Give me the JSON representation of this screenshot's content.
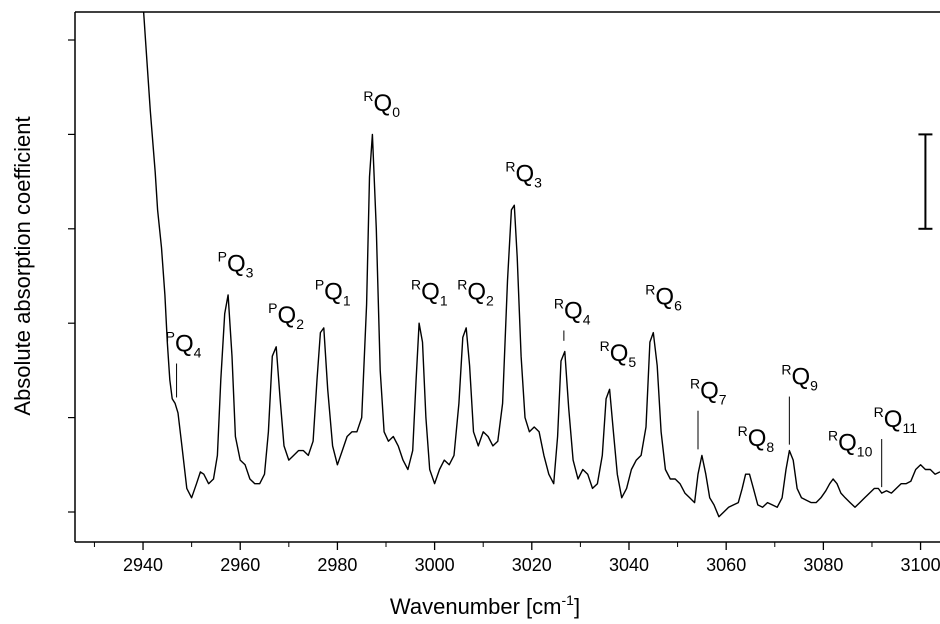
{
  "chart_data": {
    "type": "line",
    "xlabel": "Wavenumber [cm",
    "xlabel_sup": "-1",
    "xlabel_end": "]",
    "ylabel": "Absolute absorption coefficient",
    "xlim": [
      2926,
      3104
    ],
    "ylim": [
      0,
      1
    ],
    "x_ticks": [
      2940,
      2960,
      2980,
      3000,
      3020,
      3040,
      3060,
      3080,
      3100
    ],
    "x_tick_labels": [
      "2940",
      "2960",
      "2980",
      "3000",
      "3020",
      "3040",
      "3060",
      "3080",
      "3100"
    ],
    "y_ticks": [
      0.0,
      0.2,
      0.4,
      0.6,
      0.8,
      1.0
    ],
    "grid": false,
    "scale_bar": {
      "x": 3101,
      "y_low": 0.6,
      "y_high": 0.8
    },
    "series": [
      {
        "x": [
          2940.5,
          2941.5,
          2942.5,
          2943.0,
          2943.8,
          2944.5,
          2945.0,
          2945.5,
          2946.0,
          2946.6,
          2947.2,
          2948.0,
          2949.0,
          2950.0,
          2951.0,
          2951.8,
          2952.5,
          2953.5,
          2954.5,
          2955.3,
          2956.0,
          2956.8,
          2957.5,
          2958.3,
          2959.0,
          2960.0,
          2961.0,
          2962.0,
          2963.0,
          2964.0,
          2965.0,
          2965.8,
          2966.6,
          2967.4,
          2968.2,
          2969.0,
          2970.0,
          2971.0,
          2972.0,
          2973.0,
          2974.0,
          2975.0,
          2975.8,
          2976.5,
          2977.2,
          2978.0,
          2979.0,
          2980.0,
          2981.0,
          2982.0,
          2983.0,
          2984.0,
          2985.0,
          2986.0,
          2986.6,
          2987.2,
          2988.0,
          2988.8,
          2989.6,
          2990.5,
          2991.5,
          2992.5,
          2993.5,
          2994.5,
          2995.5,
          2996.2,
          2996.8,
          2997.5,
          2998.2,
          2999.0,
          3000.0,
          3001.0,
          3002.0,
          3003.0,
          3004.0,
          3005.0,
          3005.8,
          3006.5,
          3007.2,
          3008.0,
          3009.0,
          3010.0,
          3011.0,
          3012.0,
          3013.0,
          3014.0,
          3015.0,
          3015.8,
          3016.4,
          3017.0,
          3017.8,
          3018.6,
          3019.5,
          3020.5,
          3021.5,
          3022.5,
          3023.5,
          3024.5,
          3025.3,
          3026.0,
          3026.8,
          3027.6,
          3028.5,
          3029.5,
          3030.5,
          3031.5,
          3032.5,
          3033.5,
          3034.5,
          3035.3,
          3036.0,
          3036.8,
          3037.6,
          3038.5,
          3039.5,
          3040.5,
          3041.5,
          3042.5,
          3043.5,
          3044.3,
          3045.0,
          3045.8,
          3046.6,
          3047.5,
          3048.5,
          3049.5,
          3050.5,
          3051.5,
          3052.5,
          3053.5,
          3054.2,
          3055.0,
          3055.8,
          3056.6,
          3057.5,
          3058.5,
          3059.5,
          3060.5,
          3061.5,
          3062.5,
          3063.3,
          3064.0,
          3064.8,
          3065.6,
          3066.5,
          3067.5,
          3068.5,
          3069.5,
          3070.5,
          3071.5,
          3072.3,
          3073.0,
          3073.8,
          3074.6,
          3075.5,
          3076.5,
          3077.5,
          3078.5,
          3079.5,
          3080.5,
          3081.3,
          3082.0,
          3082.8,
          3083.6,
          3084.5,
          3085.5,
          3086.5,
          3087.5,
          3088.5,
          3089.5,
          3090.5,
          3091.3,
          3092.0,
          3093.0,
          3094.0,
          3095.0,
          3096.0,
          3097.0,
          3098.0,
          3099.0,
          3100.0,
          3101.0,
          3102.0,
          3103.0,
          3104.0
        ],
        "y": [
          1.0,
          0.85,
          0.72,
          0.64,
          0.56,
          0.46,
          0.36,
          0.28,
          0.24,
          0.23,
          0.21,
          0.14,
          0.05,
          0.03,
          0.06,
          0.085,
          0.08,
          0.06,
          0.07,
          0.12,
          0.28,
          0.42,
          0.46,
          0.33,
          0.16,
          0.11,
          0.1,
          0.07,
          0.06,
          0.06,
          0.08,
          0.17,
          0.33,
          0.35,
          0.24,
          0.14,
          0.11,
          0.12,
          0.13,
          0.13,
          0.12,
          0.15,
          0.28,
          0.38,
          0.39,
          0.26,
          0.14,
          0.1,
          0.13,
          0.16,
          0.17,
          0.17,
          0.2,
          0.44,
          0.71,
          0.8,
          0.6,
          0.3,
          0.17,
          0.15,
          0.16,
          0.14,
          0.11,
          0.09,
          0.13,
          0.28,
          0.4,
          0.36,
          0.2,
          0.09,
          0.06,
          0.09,
          0.11,
          0.1,
          0.12,
          0.23,
          0.37,
          0.39,
          0.31,
          0.17,
          0.14,
          0.17,
          0.16,
          0.14,
          0.15,
          0.23,
          0.49,
          0.64,
          0.65,
          0.54,
          0.33,
          0.2,
          0.17,
          0.18,
          0.17,
          0.12,
          0.08,
          0.06,
          0.16,
          0.32,
          0.34,
          0.22,
          0.11,
          0.07,
          0.09,
          0.08,
          0.05,
          0.06,
          0.12,
          0.24,
          0.26,
          0.17,
          0.08,
          0.03,
          0.05,
          0.09,
          0.11,
          0.12,
          0.18,
          0.36,
          0.38,
          0.31,
          0.17,
          0.09,
          0.07,
          0.07,
          0.06,
          0.04,
          0.03,
          0.02,
          0.08,
          0.12,
          0.08,
          0.03,
          0.015,
          -0.01,
          0.0,
          0.01,
          0.015,
          0.02,
          0.05,
          0.08,
          0.08,
          0.05,
          0.015,
          0.01,
          0.02,
          0.015,
          0.01,
          0.03,
          0.09,
          0.13,
          0.11,
          0.05,
          0.03,
          0.025,
          0.02,
          0.02,
          0.03,
          0.045,
          0.06,
          0.07,
          0.06,
          0.04,
          0.03,
          0.02,
          0.01,
          0.02,
          0.03,
          0.04,
          0.05,
          0.05,
          0.04,
          0.045,
          0.04,
          0.05,
          0.06,
          0.06,
          0.065,
          0.09,
          0.1,
          0.09,
          0.09,
          0.08,
          0.085
        ]
      }
    ],
    "annotations": [
      {
        "sup": "P",
        "main": "Q",
        "sub": "4",
        "x": 2946.9,
        "y": 0.23,
        "label_x": 2946.3,
        "label_y": 0.34,
        "tick": true
      },
      {
        "sup": "P",
        "main": "Q",
        "sub": "3",
        "x": 2957.0,
        "y": 0.46,
        "label_x": 2957.0,
        "label_y": 0.51,
        "tick": false
      },
      {
        "sup": "P",
        "main": "Q",
        "sub": "2",
        "x": 2967.4,
        "y": 0.35,
        "label_x": 2967.4,
        "label_y": 0.4,
        "tick": false
      },
      {
        "sup": "P",
        "main": "Q",
        "sub": "1",
        "x": 2977.0,
        "y": 0.39,
        "label_x": 2977.0,
        "label_y": 0.45,
        "tick": false
      },
      {
        "sup": "R",
        "main": "Q",
        "sub": "0",
        "x": 2987.2,
        "y": 0.8,
        "label_x": 2987.0,
        "label_y": 0.85,
        "tick": false
      },
      {
        "sup": "R",
        "main": "Q",
        "sub": "1",
        "x": 2996.8,
        "y": 0.4,
        "label_x": 2996.8,
        "label_y": 0.45,
        "tick": false
      },
      {
        "sup": "R",
        "main": "Q",
        "sub": "2",
        "x": 3006.5,
        "y": 0.39,
        "label_x": 3006.3,
        "label_y": 0.45,
        "tick": false
      },
      {
        "sup": "R",
        "main": "Q",
        "sub": "3",
        "x": 3016.4,
        "y": 0.65,
        "label_x": 3016.2,
        "label_y": 0.7,
        "tick": false
      },
      {
        "sup": "R",
        "main": "Q",
        "sub": "4",
        "x": 3026.6,
        "y": 0.35,
        "label_x": 3026.2,
        "label_y": 0.41,
        "tick": true
      },
      {
        "sup": "R",
        "main": "Q",
        "sub": "5",
        "x": 3036.0,
        "y": 0.26,
        "label_x": 3035.6,
        "label_y": 0.32,
        "tick": false
      },
      {
        "sup": "R",
        "main": "Q",
        "sub": "6",
        "x": 3045.0,
        "y": 0.38,
        "label_x": 3045.0,
        "label_y": 0.44,
        "tick": false
      },
      {
        "sup": "R",
        "main": "Q",
        "sub": "7",
        "x": 3054.2,
        "y": 0.12,
        "label_x": 3054.2,
        "label_y": 0.24,
        "tick": true
      },
      {
        "sup": "R",
        "main": "Q",
        "sub": "8",
        "x": 3064.0,
        "y": 0.08,
        "label_x": 3064.0,
        "label_y": 0.14,
        "tick": false
      },
      {
        "sup": "R",
        "main": "Q",
        "sub": "9",
        "x": 3073.0,
        "y": 0.13,
        "label_x": 3073.0,
        "label_y": 0.27,
        "tick": true
      },
      {
        "sup": "R",
        "main": "Q",
        "sub": "10",
        "x": 3082.5,
        "y": 0.07,
        "label_x": 3082.6,
        "label_y": 0.13,
        "tick": false
      },
      {
        "sup": "R",
        "main": "Q",
        "sub": "11",
        "x": 3092.0,
        "y": 0.04,
        "label_x": 3092.0,
        "label_y": 0.18,
        "tick": true
      }
    ]
  }
}
